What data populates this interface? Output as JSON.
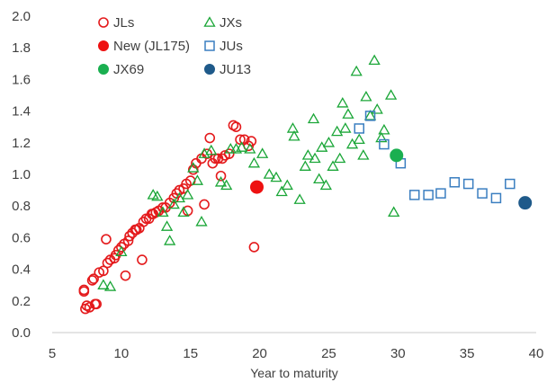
{
  "chart_data": {
    "type": "scatter",
    "title": "",
    "xlabel": "Year to maturity",
    "ylabel": "",
    "xlim": [
      5,
      40
    ],
    "ylim": [
      0.0,
      2.0
    ],
    "x_ticks": [
      "5",
      "10",
      "15",
      "20",
      "25",
      "30",
      "35",
      "40"
    ],
    "y_ticks": [
      "0.0",
      "0.2",
      "0.4",
      "0.6",
      "0.8",
      "1.0",
      "1.2",
      "1.4",
      "1.6",
      "1.8",
      "2.0"
    ],
    "grid": false,
    "legend_position": "top-left",
    "series": [
      {
        "name": "JLs",
        "marker": "circle",
        "fill": "none",
        "color": "#e41a1c",
        "points": [
          [
            7.3,
            0.27
          ],
          [
            7.3,
            0.26
          ],
          [
            7.4,
            0.15
          ],
          [
            7.5,
            0.17
          ],
          [
            7.7,
            0.16
          ],
          [
            7.9,
            0.33
          ],
          [
            8.0,
            0.34
          ],
          [
            8.1,
            0.18
          ],
          [
            8.2,
            0.18
          ],
          [
            8.4,
            0.38
          ],
          [
            8.7,
            0.39
          ],
          [
            8.9,
            0.59
          ],
          [
            9.0,
            0.44
          ],
          [
            9.2,
            0.46
          ],
          [
            9.5,
            0.47
          ],
          [
            9.6,
            0.49
          ],
          [
            9.8,
            0.52
          ],
          [
            10.0,
            0.54
          ],
          [
            10.2,
            0.56
          ],
          [
            10.3,
            0.36
          ],
          [
            10.5,
            0.58
          ],
          [
            10.6,
            0.61
          ],
          [
            10.8,
            0.63
          ],
          [
            11.0,
            0.65
          ],
          [
            11.1,
            0.65
          ],
          [
            11.3,
            0.66
          ],
          [
            11.5,
            0.46
          ],
          [
            11.6,
            0.7
          ],
          [
            11.8,
            0.72
          ],
          [
            12.0,
            0.72
          ],
          [
            12.2,
            0.75
          ],
          [
            12.3,
            0.75
          ],
          [
            12.5,
            0.76
          ],
          [
            12.7,
            0.77
          ],
          [
            13.0,
            0.79
          ],
          [
            13.2,
            0.79
          ],
          [
            13.5,
            0.82
          ],
          [
            13.8,
            0.85
          ],
          [
            14.0,
            0.88
          ],
          [
            14.2,
            0.9
          ],
          [
            14.5,
            0.91
          ],
          [
            14.7,
            0.94
          ],
          [
            14.8,
            0.77
          ],
          [
            15.0,
            0.96
          ],
          [
            15.2,
            1.03
          ],
          [
            15.4,
            1.07
          ],
          [
            15.8,
            1.1
          ],
          [
            16.0,
            0.81
          ],
          [
            16.2,
            1.13
          ],
          [
            16.4,
            1.23
          ],
          [
            16.6,
            1.07
          ],
          [
            16.8,
            1.1
          ],
          [
            17.0,
            1.1
          ],
          [
            17.2,
            0.99
          ],
          [
            17.3,
            1.1
          ],
          [
            17.5,
            1.12
          ],
          [
            17.8,
            1.13
          ],
          [
            18.1,
            1.31
          ],
          [
            18.3,
            1.3
          ],
          [
            18.6,
            1.22
          ],
          [
            18.9,
            1.22
          ],
          [
            19.2,
            1.18
          ],
          [
            19.4,
            1.21
          ],
          [
            19.6,
            0.54
          ]
        ]
      },
      {
        "name": "JXs",
        "marker": "triangle",
        "fill": "none",
        "color": "#1aa637",
        "points": [
          [
            8.7,
            0.3
          ],
          [
            9.2,
            0.29
          ],
          [
            10.0,
            0.51
          ],
          [
            12.3,
            0.87
          ],
          [
            12.6,
            0.86
          ],
          [
            13.0,
            0.76
          ],
          [
            13.3,
            0.67
          ],
          [
            13.5,
            0.58
          ],
          [
            13.8,
            0.81
          ],
          [
            14.2,
            0.85
          ],
          [
            14.5,
            0.76
          ],
          [
            14.8,
            0.87
          ],
          [
            15.2,
            1.04
          ],
          [
            15.5,
            0.96
          ],
          [
            15.8,
            0.7
          ],
          [
            16.0,
            1.13
          ],
          [
            16.5,
            1.15
          ],
          [
            17.2,
            0.95
          ],
          [
            17.6,
            0.93
          ],
          [
            17.9,
            1.16
          ],
          [
            18.3,
            1.16
          ],
          [
            18.7,
            1.17
          ],
          [
            19.3,
            1.16
          ],
          [
            19.6,
            1.07
          ],
          [
            20.2,
            1.13
          ],
          [
            20.7,
            1.0
          ],
          [
            21.2,
            0.98
          ],
          [
            21.6,
            0.89
          ],
          [
            22.0,
            0.93
          ],
          [
            22.4,
            1.29
          ],
          [
            22.5,
            1.24
          ],
          [
            22.9,
            0.84
          ],
          [
            23.3,
            1.05
          ],
          [
            23.5,
            1.12
          ],
          [
            23.9,
            1.35
          ],
          [
            24.0,
            1.1
          ],
          [
            24.3,
            0.97
          ],
          [
            24.5,
            1.17
          ],
          [
            24.8,
            0.93
          ],
          [
            25.0,
            1.2
          ],
          [
            25.3,
            1.05
          ],
          [
            25.6,
            1.27
          ],
          [
            25.8,
            1.1
          ],
          [
            26.0,
            1.45
          ],
          [
            26.2,
            1.29
          ],
          [
            26.4,
            1.38
          ],
          [
            26.7,
            1.19
          ],
          [
            27.0,
            1.65
          ],
          [
            27.2,
            1.22
          ],
          [
            27.5,
            1.12
          ],
          [
            27.7,
            1.49
          ],
          [
            28.0,
            1.37
          ],
          [
            28.3,
            1.72
          ],
          [
            28.5,
            1.41
          ],
          [
            28.8,
            1.23
          ],
          [
            29.0,
            1.28
          ],
          [
            29.5,
            1.5
          ],
          [
            29.7,
            0.76
          ]
        ]
      },
      {
        "name": "New (JL175)",
        "marker": "circle",
        "fill": "solid",
        "color": "#ee1111",
        "points": [
          [
            19.8,
            0.92
          ]
        ]
      },
      {
        "name": "JUs",
        "marker": "square",
        "fill": "none",
        "color": "#3a7ec0",
        "points": [
          [
            27.2,
            1.29
          ],
          [
            28.0,
            1.37
          ],
          [
            29.0,
            1.19
          ],
          [
            30.2,
            1.07
          ],
          [
            31.2,
            0.87
          ],
          [
            32.2,
            0.87
          ],
          [
            33.1,
            0.88
          ],
          [
            34.1,
            0.95
          ],
          [
            35.1,
            0.94
          ],
          [
            36.1,
            0.88
          ],
          [
            37.1,
            0.85
          ],
          [
            38.1,
            0.94
          ]
        ]
      },
      {
        "name": "JX69",
        "marker": "circle",
        "fill": "solid",
        "color": "#1aaf50",
        "points": [
          [
            29.9,
            1.12
          ]
        ]
      },
      {
        "name": "JU13",
        "marker": "circle",
        "fill": "solid",
        "color": "#1f5a8a",
        "points": [
          [
            39.2,
            0.82
          ]
        ]
      }
    ]
  }
}
